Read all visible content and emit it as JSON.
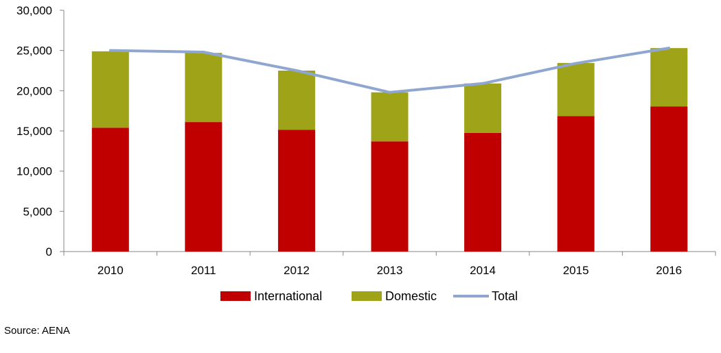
{
  "chart_data": {
    "type": "bar",
    "stacked": true,
    "categories": [
      "2010",
      "2011",
      "2012",
      "2013",
      "2014",
      "2015",
      "2016"
    ],
    "series": [
      {
        "name": "International",
        "kind": "bar",
        "color": "#c00000",
        "values": [
          15400,
          16100,
          15150,
          13700,
          14750,
          16850,
          18050
        ]
      },
      {
        "name": "Domestic",
        "kind": "bar",
        "color": "#9ea317",
        "values": [
          9500,
          8600,
          7350,
          6100,
          6150,
          6600,
          7250
        ]
      },
      {
        "name": "Total",
        "kind": "line",
        "color": "#8ea6d0",
        "values": [
          25000,
          24800,
          22500,
          19800,
          20900,
          23400,
          25300
        ]
      }
    ],
    "ylim": [
      0,
      30000
    ],
    "yticks": [
      0,
      5000,
      10000,
      15000,
      20000,
      25000,
      30000
    ],
    "ytick_labels": [
      "0",
      "5,000",
      "10,000",
      "15,000",
      "20,000",
      "25,000",
      "30,000"
    ],
    "grid": false,
    "legend_position": "bottom"
  },
  "source_note": "Source: AENA"
}
